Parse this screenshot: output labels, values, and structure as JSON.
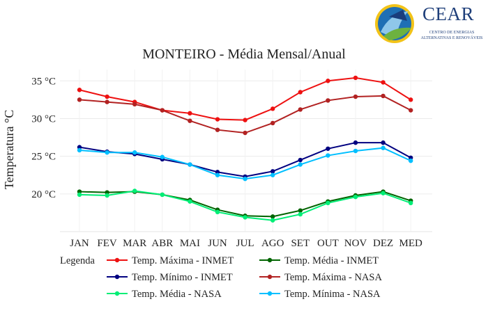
{
  "logo": {
    "name": "CEAR",
    "subtitle_line1": "CENTRO DE ENERGIAS",
    "subtitle_line2": "ALTERNATIVAS E RENOVÁVEIS"
  },
  "chart_data": {
    "type": "line",
    "title": "MONTEIRO - Média Mensal/Anual",
    "xlabel": "",
    "ylabel": "Temperatura °C",
    "categories": [
      "JAN",
      "FEV",
      "MAR",
      "ABR",
      "MAI",
      "JUN",
      "JUL",
      "AGO",
      "SET",
      "OUT",
      "NOV",
      "DEZ",
      "MED"
    ],
    "ylim": [
      15,
      36.5
    ],
    "yticks": [
      20,
      25,
      30,
      35
    ],
    "ytick_labels": [
      "20 °C",
      "25 °C",
      "30 °C",
      "35 °C"
    ],
    "grid": true,
    "legend_title": "Legenda",
    "legend_position": "bottom",
    "series": [
      {
        "name": "Temp. Máxima - INMET",
        "color": "#ee1111",
        "values": [
          33.8,
          32.9,
          32.2,
          31.1,
          30.7,
          29.9,
          29.8,
          31.3,
          33.5,
          35.0,
          35.4,
          34.8,
          32.5
        ]
      },
      {
        "name": "Temp. Média - INMET",
        "color": "#006400",
        "values": [
          20.3,
          20.2,
          20.3,
          19.9,
          19.2,
          17.9,
          17.1,
          17.0,
          17.8,
          19.0,
          19.8,
          20.3,
          19.1
        ]
      },
      {
        "name": "Temp. Mínimo - INMET",
        "color": "#000080",
        "values": [
          26.2,
          25.6,
          25.3,
          24.6,
          23.9,
          22.9,
          22.3,
          23.0,
          24.5,
          26.0,
          26.8,
          26.8,
          24.8
        ]
      },
      {
        "name": "Temp. Máxima - NASA",
        "color": "#b22222",
        "values": [
          32.5,
          32.2,
          31.9,
          31.1,
          29.7,
          28.5,
          28.1,
          29.4,
          31.2,
          32.4,
          32.9,
          33.0,
          31.1
        ]
      },
      {
        "name": "Temp. Média - NASA",
        "color": "#00ee76",
        "values": [
          19.9,
          19.8,
          20.4,
          19.9,
          19.0,
          17.6,
          16.9,
          16.5,
          17.3,
          18.8,
          19.6,
          20.1,
          18.8
        ]
      },
      {
        "name": "Temp. Mínima - NASA",
        "color": "#00bfff",
        "values": [
          25.8,
          25.5,
          25.5,
          24.9,
          23.9,
          22.5,
          22.0,
          22.5,
          23.9,
          25.1,
          25.7,
          26.1,
          24.4
        ]
      }
    ]
  }
}
